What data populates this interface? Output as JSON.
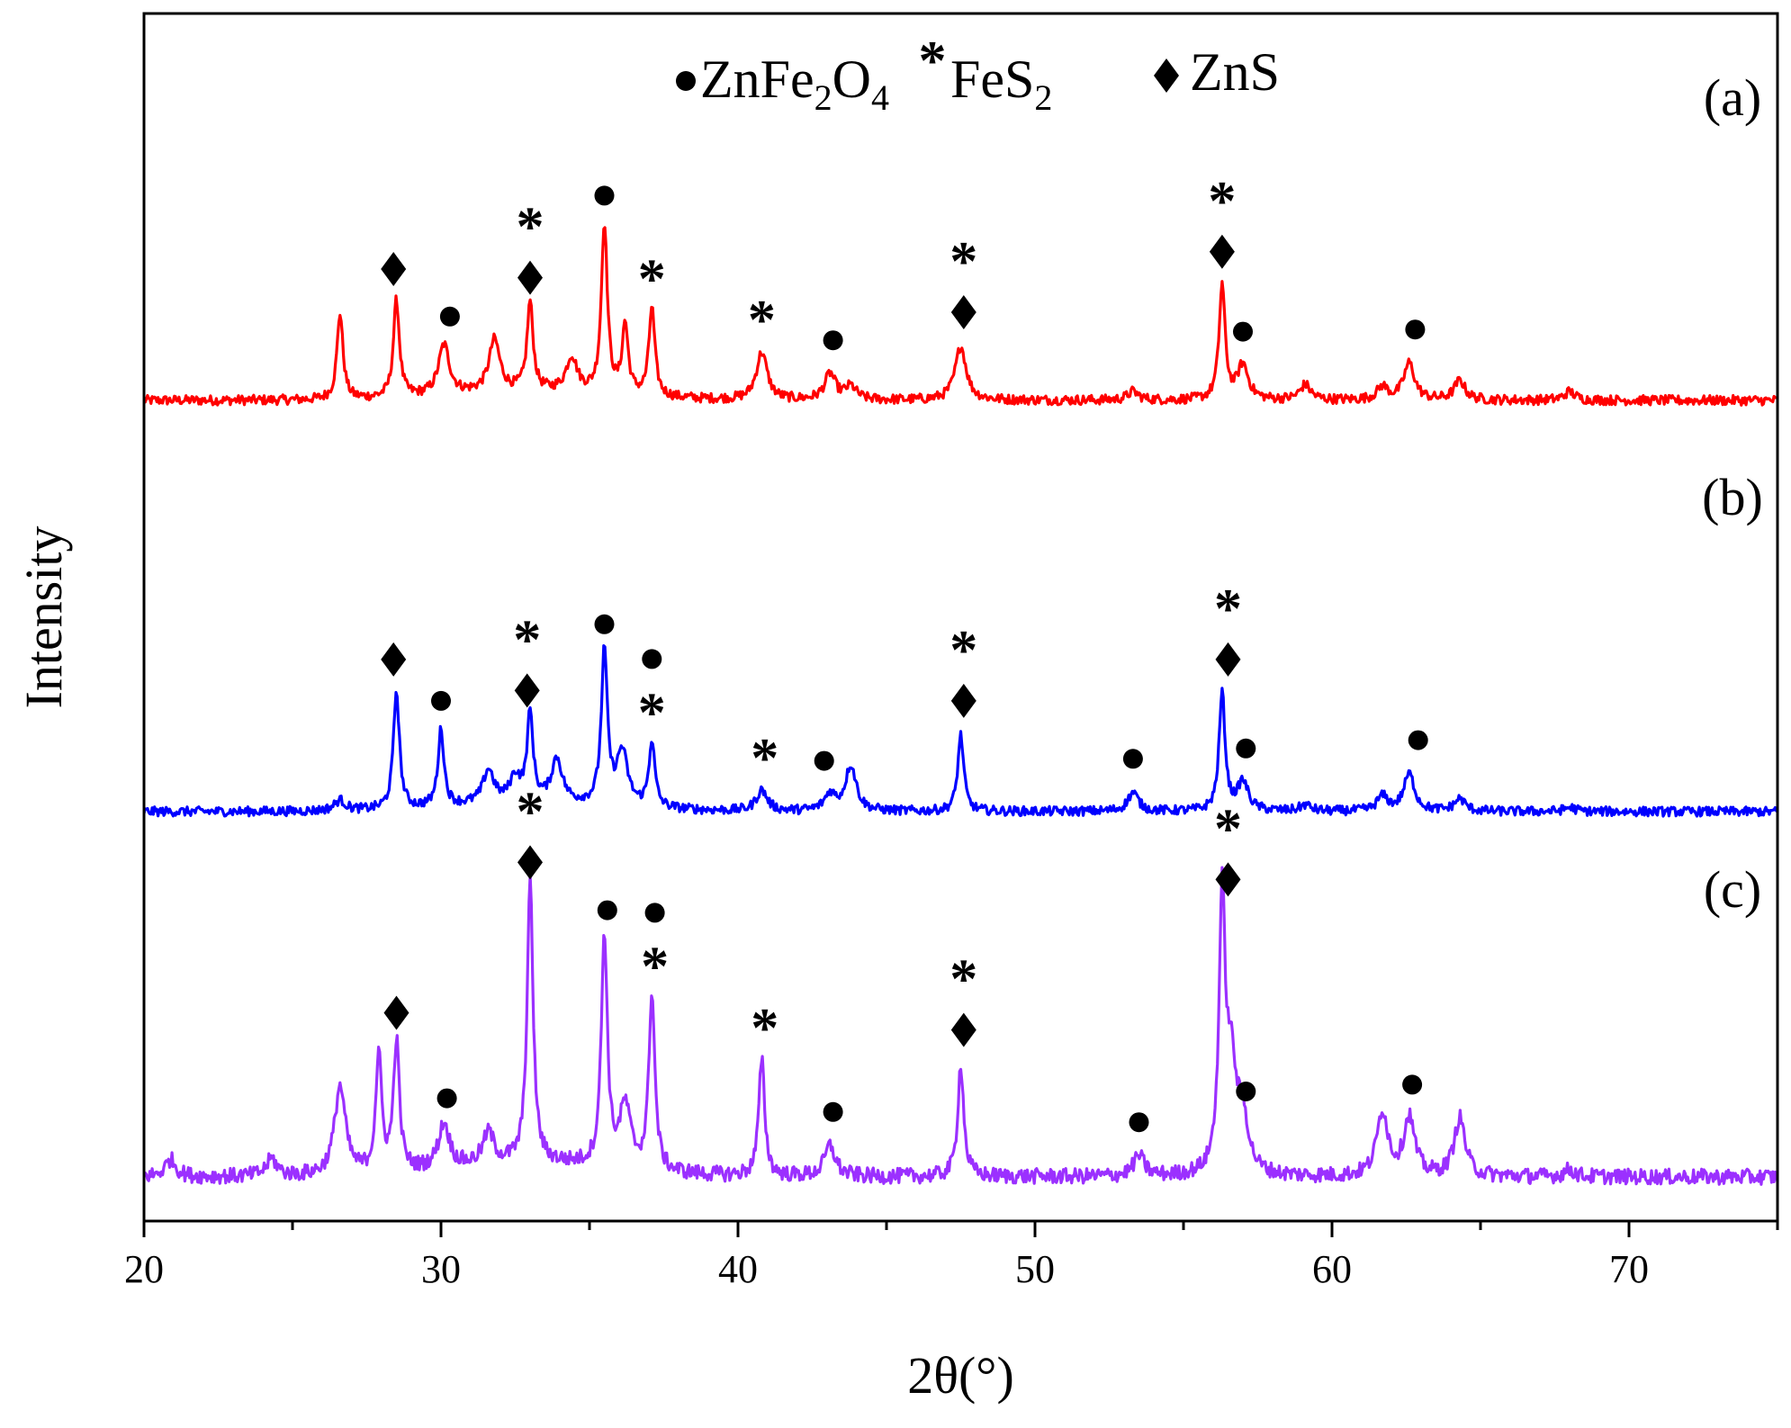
{
  "chart_data": {
    "type": "line",
    "xlabel": "2θ(°)",
    "ylabel": "Intensity",
    "xlim": [
      20,
      75
    ],
    "x_ticks": [
      "20",
      "30",
      "40",
      "50",
      "60",
      "70"
    ],
    "y_ticks": [],
    "legend": [
      {
        "symbol": "circle",
        "text": "ZnFe",
        "sub1": "2",
        "mid": "O",
        "sub2": "4",
        "name": "ZnFe2O4"
      },
      {
        "symbol": "star",
        "text": "FeS",
        "sub1": "2",
        "name": "FeS2"
      },
      {
        "symbol": "diamond",
        "text": "ZnS",
        "name": "ZnS"
      }
    ],
    "series": [
      {
        "name": "(a)",
        "label": "(a)",
        "color": "#ff0000",
        "baseline": 0.0,
        "peaks": [
          [
            26.6,
            0.4
          ],
          [
            28.5,
            0.45
          ],
          [
            30.1,
            0.23
          ],
          [
            31.8,
            0.24
          ],
          [
            33.0,
            0.41
          ],
          [
            34.4,
            0.16
          ],
          [
            35.5,
            0.79
          ],
          [
            36.2,
            0.32
          ],
          [
            37.1,
            0.41
          ],
          [
            40.8,
            0.22
          ],
          [
            43.1,
            0.12
          ],
          [
            43.8,
            0.06
          ],
          [
            47.5,
            0.25
          ],
          [
            53.3,
            0.04
          ],
          [
            56.3,
            0.53
          ],
          [
            57.0,
            0.16
          ],
          [
            59.1,
            0.07
          ],
          [
            61.7,
            0.06
          ],
          [
            62.6,
            0.17
          ],
          [
            64.3,
            0.09
          ],
          [
            68.0,
            0.04
          ]
        ],
        "markers": [
          {
            "x": 28.4,
            "stack": [
              "diamond"
            ]
          },
          {
            "x": 30.3,
            "stack": [
              "circle"
            ]
          },
          {
            "x": 33.0,
            "stack": [
              "diamond",
              "star"
            ]
          },
          {
            "x": 35.5,
            "stack": [
              "circle"
            ]
          },
          {
            "x": 37.1,
            "stack": [
              "star"
            ]
          },
          {
            "x": 40.8,
            "stack": [
              "star"
            ]
          },
          {
            "x": 43.2,
            "stack": [
              "circle"
            ]
          },
          {
            "x": 47.6,
            "stack": [
              "diamond",
              "star"
            ]
          },
          {
            "x": 56.3,
            "stack": [
              "diamond",
              "star"
            ]
          },
          {
            "x": 57.0,
            "stack": [
              "circle"
            ]
          },
          {
            "x": 62.8,
            "stack": [
              "circle"
            ]
          }
        ]
      },
      {
        "name": "(b)",
        "label": "(b)",
        "color": "#0000ff",
        "baseline": 0.0,
        "peaks": [
          [
            26.6,
            0.05
          ],
          [
            28.5,
            0.57
          ],
          [
            30.0,
            0.37
          ],
          [
            31.6,
            0.16
          ],
          [
            32.5,
            0.12
          ],
          [
            33.0,
            0.42
          ],
          [
            33.9,
            0.21
          ],
          [
            35.5,
            0.74
          ],
          [
            36.1,
            0.26
          ],
          [
            37.1,
            0.32
          ],
          [
            40.8,
            0.1
          ],
          [
            43.1,
            0.08
          ],
          [
            43.8,
            0.22
          ],
          [
            47.5,
            0.37
          ],
          [
            53.3,
            0.09
          ],
          [
            56.3,
            0.57
          ],
          [
            57.0,
            0.14
          ],
          [
            59.1,
            0.03
          ],
          [
            61.7,
            0.07
          ],
          [
            62.6,
            0.18
          ],
          [
            64.3,
            0.06
          ],
          [
            68.0,
            0.02
          ]
        ],
        "markers": [
          {
            "x": 28.4,
            "stack": [
              "diamond"
            ]
          },
          {
            "x": 30.0,
            "stack": [
              "circle"
            ]
          },
          {
            "x": 32.9,
            "stack": [
              "diamond",
              "star"
            ]
          },
          {
            "x": 35.5,
            "stack": [
              "circle"
            ]
          },
          {
            "x": 37.1,
            "stack": [
              "star",
              "circle"
            ]
          },
          {
            "x": 40.9,
            "stack": [
              "star"
            ]
          },
          {
            "x": 42.9,
            "stack": [
              "circle"
            ]
          },
          {
            "x": 47.6,
            "stack": [
              "diamond",
              "star"
            ]
          },
          {
            "x": 53.3,
            "stack": [
              "circle"
            ]
          },
          {
            "x": 56.5,
            "stack": [
              "diamond",
              "star"
            ]
          },
          {
            "x": 57.1,
            "stack": [
              "circle"
            ]
          },
          {
            "x": 62.9,
            "stack": [
              "circle"
            ]
          }
        ]
      },
      {
        "name": "(c)",
        "label": "(c)",
        "color": "#9b30ff",
        "baseline": 0.0,
        "peaks": [
          [
            20.9,
            0.05
          ],
          [
            24.3,
            0.05
          ],
          [
            26.6,
            0.26
          ],
          [
            27.9,
            0.34
          ],
          [
            28.5,
            0.38
          ],
          [
            30.1,
            0.13
          ],
          [
            31.6,
            0.09
          ],
          [
            33.0,
            0.82
          ],
          [
            35.5,
            0.68
          ],
          [
            36.2,
            0.18
          ],
          [
            37.1,
            0.52
          ],
          [
            40.8,
            0.34
          ],
          [
            43.1,
            0.09
          ],
          [
            47.5,
            0.33
          ],
          [
            53.5,
            0.06
          ],
          [
            56.3,
            0.77
          ],
          [
            56.6,
            0.3
          ],
          [
            57.0,
            0.15
          ],
          [
            61.7,
            0.19
          ],
          [
            62.6,
            0.17
          ],
          [
            64.3,
            0.17
          ],
          [
            68.0,
            0.02
          ]
        ],
        "markers": [
          {
            "x": 28.5,
            "stack": [
              "diamond"
            ]
          },
          {
            "x": 30.2,
            "stack": [
              "circle"
            ]
          },
          {
            "x": 33.0,
            "stack": [
              "diamond",
              "star"
            ]
          },
          {
            "x": 35.6,
            "stack": [
              "circle"
            ]
          },
          {
            "x": 37.2,
            "stack": [
              "star",
              "circle"
            ]
          },
          {
            "x": 40.9,
            "stack": [
              "star"
            ]
          },
          {
            "x": 43.2,
            "stack": [
              "circle"
            ]
          },
          {
            "x": 47.6,
            "stack": [
              "diamond",
              "star"
            ]
          },
          {
            "x": 53.5,
            "stack": [
              "circle"
            ]
          },
          {
            "x": 56.5,
            "stack": [
              "diamond",
              "star"
            ]
          },
          {
            "x": 57.1,
            "stack": [
              "circle"
            ]
          },
          {
            "x": 62.7,
            "stack": [
              "circle"
            ]
          }
        ]
      }
    ]
  }
}
